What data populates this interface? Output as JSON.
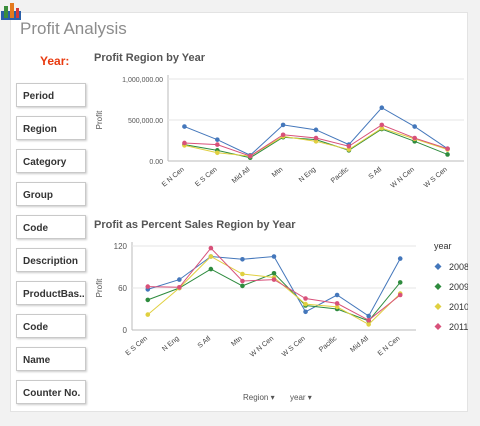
{
  "app": {
    "title": "Profit Analysis"
  },
  "filters": {
    "year_label": "Year:",
    "items": [
      "Period",
      "Region",
      "Category",
      "Group",
      "Code",
      "Description",
      "ProductBas...",
      "Code",
      "Name",
      "Counter No."
    ]
  },
  "footer": {
    "dim1": "Region",
    "dim2": "year"
  },
  "colors": {
    "2008": "#4477bb",
    "2009": "#2e8b3e",
    "2010": "#e0d040",
    "2011": "#d8517a"
  },
  "chart_data": [
    {
      "type": "line",
      "title": "Profit Region by Year",
      "xlabel": "",
      "ylabel": "Profit",
      "categories": [
        "E N Cen",
        "E S Cen",
        "Mid Atl",
        "Mtn",
        "N Eng",
        "Pacific",
        "S Atl",
        "W N Cen",
        "W S Cen"
      ],
      "yticks": [
        "1,000,000.00",
        "500,000.00",
        "0.00"
      ],
      "ylim": [
        0,
        1000000
      ],
      "grid": true,
      "series": [
        {
          "name": "2008",
          "values": [
            420000,
            260000,
            70000,
            440000,
            380000,
            200000,
            650000,
            420000,
            150000
          ]
        },
        {
          "name": "2009",
          "values": [
            200000,
            130000,
            40000,
            290000,
            260000,
            130000,
            390000,
            240000,
            80000
          ]
        },
        {
          "name": "2010",
          "values": [
            190000,
            100000,
            60000,
            300000,
            240000,
            140000,
            400000,
            270000,
            140000
          ]
        },
        {
          "name": "2011",
          "values": [
            220000,
            200000,
            60000,
            320000,
            280000,
            180000,
            440000,
            280000,
            150000
          ]
        }
      ]
    },
    {
      "type": "line",
      "title": "Profit as Percent Sales Region by Year",
      "xlabel": "",
      "ylabel": "Profit",
      "categories": [
        "E S Cen",
        "N Eng",
        "S Atl",
        "Mtn",
        "W N Cen",
        "W S Cen",
        "Pacific",
        "Mid Atl",
        "E N Cen"
      ],
      "yticks": [
        "120",
        "60",
        "0"
      ],
      "ylim": [
        0,
        120
      ],
      "grid": true,
      "legend": {
        "title": "year",
        "position": "right"
      },
      "series": [
        {
          "name": "2008",
          "values": [
            58,
            72,
            105,
            101,
            105,
            26,
            50,
            20,
            102
          ]
        },
        {
          "name": "2009",
          "values": [
            43,
            60,
            87,
            63,
            81,
            35,
            30,
            13,
            68
          ]
        },
        {
          "name": "2010",
          "values": [
            22,
            60,
            105,
            80,
            75,
            37,
            33,
            8,
            52
          ]
        },
        {
          "name": "2011",
          "values": [
            62,
            61,
            117,
            70,
            72,
            45,
            38,
            14,
            50
          ]
        }
      ]
    }
  ]
}
